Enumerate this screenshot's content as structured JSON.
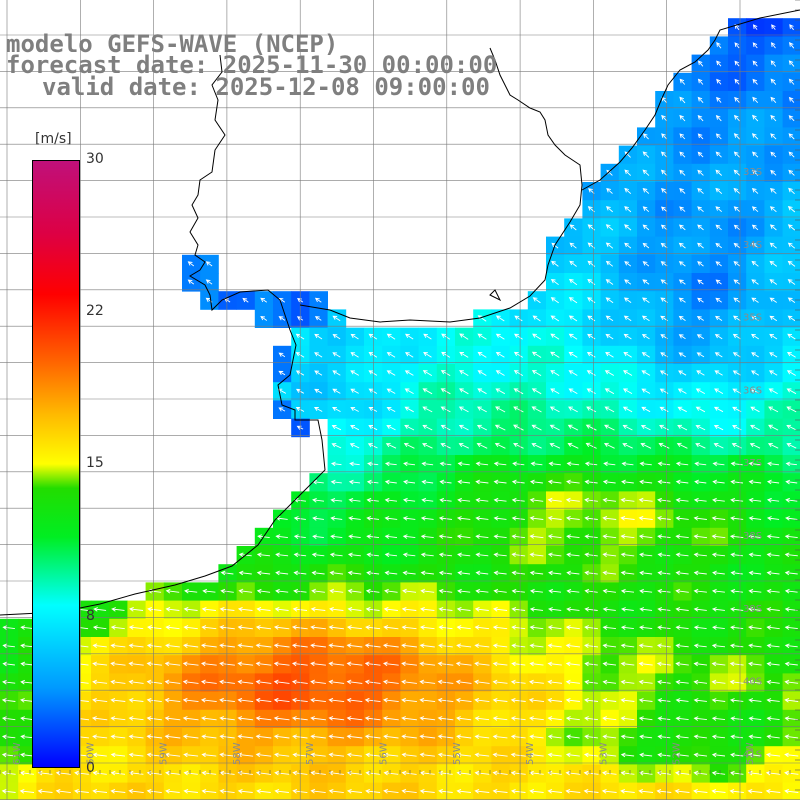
{
  "title": {
    "line1": "modelo GEFS-WAVE (NCEP)",
    "line2": "forecast date: 2025-11-30 00:00:00",
    "line3": "valid date: 2025-12-08 09:00:00"
  },
  "colorbar": {
    "unit": "[m/s]",
    "ticks": [
      "30",
      "22",
      "15",
      "8",
      "0"
    ],
    "tick_values": [
      30,
      22,
      15,
      8,
      0
    ],
    "range": [
      0,
      30
    ],
    "colors": [
      "#0000ff",
      "#0099ff",
      "#00ffff",
      "#00ee22",
      "#ffff00",
      "#ff6600",
      "#ff0000",
      "#c0107a"
    ]
  },
  "map": {
    "variable": "wind speed",
    "lat_labels": [
      "33S",
      "34S",
      "35S",
      "36S",
      "37S",
      "38S",
      "39S",
      "40S",
      "41S"
    ],
    "lon_labels": [
      "61W",
      "60W",
      "59W",
      "58W",
      "57W",
      "56W",
      "55W",
      "54W",
      "53W",
      "52W",
      "51W"
    ],
    "land_color": "#ffffff",
    "grid_color": "#888888",
    "coast_color": "#000000",
    "arrow_color": "#ffffff"
  }
}
